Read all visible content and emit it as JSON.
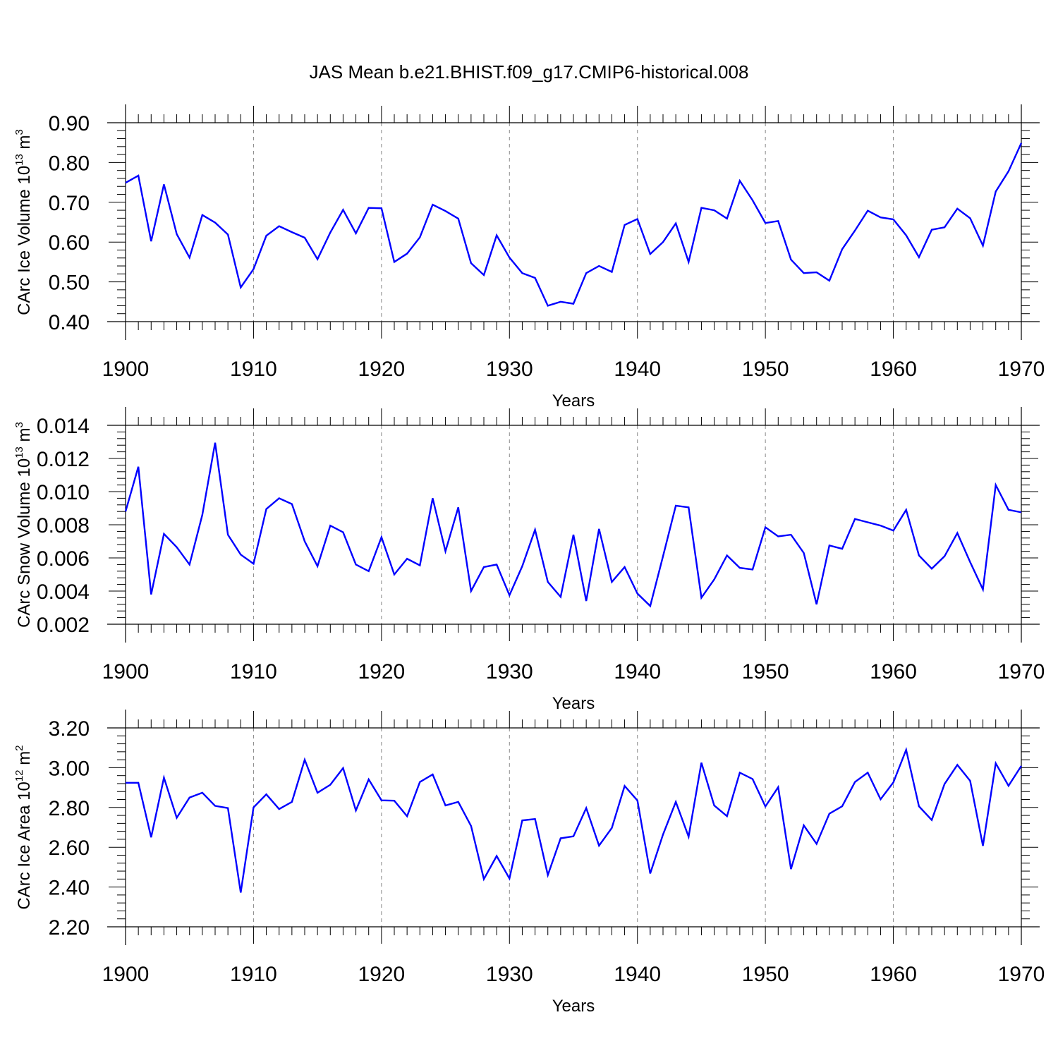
{
  "title": "JAS Mean b.e21.BHIST.f09_g17.CMIP6-historical.008",
  "chart_data": [
    {
      "type": "line",
      "ylabel": "CArc Ice Volume 10",
      "ylabel_exp": "13",
      "ylabel_unit": "m",
      "ylabel_unit_exp": "3",
      "xlabel": "Years",
      "xlim": [
        1900,
        1970
      ],
      "ylim": [
        0.4,
        0.9
      ],
      "xticks": [
        "1900",
        "1910",
        "1920",
        "1930",
        "1940",
        "1950",
        "1960",
        "1970"
      ],
      "yticks": [
        "0.40",
        "0.50",
        "0.60",
        "0.70",
        "0.80",
        "0.90"
      ],
      "ytick_values": [
        0.4,
        0.5,
        0.6,
        0.7,
        0.8,
        0.9
      ],
      "ytick_minor": 0.02,
      "grid": "x-dashed",
      "series": [
        {
          "name": "CArc Ice Volume",
          "color": "#0000ff",
          "x_start": 1900,
          "values": [
            0.749,
            0.767,
            0.602,
            0.745,
            0.62,
            0.561,
            0.668,
            0.649,
            0.619,
            0.486,
            0.532,
            0.616,
            0.64,
            0.625,
            0.611,
            0.557,
            0.624,
            0.681,
            0.622,
            0.686,
            0.685,
            0.55,
            0.571,
            0.612,
            0.694,
            0.678,
            0.659,
            0.547,
            0.517,
            0.617,
            0.561,
            0.522,
            0.51,
            0.44,
            0.45,
            0.445,
            0.522,
            0.54,
            0.525,
            0.643,
            0.658,
            0.57,
            0.6,
            0.647,
            0.55,
            0.686,
            0.68,
            0.659,
            0.754,
            0.705,
            0.648,
            0.653,
            0.556,
            0.522,
            0.524,
            0.503,
            0.582,
            0.629,
            0.679,
            0.662,
            0.657,
            0.617,
            0.562,
            0.631,
            0.637,
            0.684,
            0.66,
            0.591,
            0.727,
            0.778,
            0.849
          ]
        }
      ]
    },
    {
      "type": "line",
      "ylabel": "CArc Snow Volume 10",
      "ylabel_exp": "13",
      "ylabel_unit": "m",
      "ylabel_unit_exp": "3",
      "xlabel": "Years",
      "xlim": [
        1900,
        1970
      ],
      "ylim": [
        0.002,
        0.014
      ],
      "xticks": [
        "1900",
        "1910",
        "1920",
        "1930",
        "1940",
        "1950",
        "1960",
        "1970"
      ],
      "yticks": [
        "0.002",
        "0.004",
        "0.006",
        "0.008",
        "0.010",
        "0.012",
        "0.014"
      ],
      "ytick_values": [
        0.002,
        0.004,
        0.006,
        0.008,
        0.01,
        0.012,
        0.014
      ],
      "ytick_minor": 0.0004,
      "grid": "x-dashed",
      "series": [
        {
          "name": "CArc Snow Volume",
          "color": "#0000ff",
          "x_start": 1900,
          "values": [
            0.0088,
            0.0115,
            0.0038,
            0.00745,
            0.00665,
            0.0056,
            0.0086,
            0.01295,
            0.0074,
            0.0062,
            0.00565,
            0.00895,
            0.0096,
            0.00925,
            0.007,
            0.0055,
            0.00795,
            0.00755,
            0.0056,
            0.0052,
            0.00725,
            0.005,
            0.00595,
            0.00555,
            0.0096,
            0.0064,
            0.00905,
            0.004,
            0.00545,
            0.0056,
            0.00375,
            0.0055,
            0.0077,
            0.00455,
            0.00365,
            0.0074,
            0.0034,
            0.00775,
            0.00455,
            0.00545,
            0.00385,
            0.0031,
            0.0061,
            0.00915,
            0.00905,
            0.0036,
            0.0047,
            0.00615,
            0.0054,
            0.0053,
            0.00785,
            0.0073,
            0.0074,
            0.0063,
            0.0032,
            0.00675,
            0.00655,
            0.00835,
            0.00815,
            0.00795,
            0.00765,
            0.0089,
            0.00615,
            0.00535,
            0.0061,
            0.0075,
            0.00575,
            0.0041,
            0.0104,
            0.0089,
            0.00875
          ]
        }
      ]
    },
    {
      "type": "line",
      "ylabel": "CArc Ice Area 10",
      "ylabel_exp": "12",
      "ylabel_unit": "m",
      "ylabel_unit_exp": "2",
      "xlabel": "Years",
      "xlim": [
        1900,
        1970
      ],
      "ylim": [
        2.2,
        3.2
      ],
      "xticks": [
        "1900",
        "1910",
        "1920",
        "1930",
        "1940",
        "1950",
        "1960",
        "1970"
      ],
      "yticks": [
        "2.20",
        "2.40",
        "2.60",
        "2.80",
        "3.00",
        "3.20"
      ],
      "ytick_values": [
        2.2,
        2.4,
        2.6,
        2.8,
        3.0,
        3.2
      ],
      "ytick_minor": 0.04,
      "grid": "x-dashed",
      "series": [
        {
          "name": "CArc Ice Area",
          "color": "#0000ff",
          "x_start": 1900,
          "values": [
            2.924,
            2.924,
            2.65,
            2.95,
            2.748,
            2.85,
            2.874,
            2.808,
            2.797,
            2.372,
            2.8,
            2.866,
            2.792,
            2.828,
            3.04,
            2.874,
            2.914,
            2.998,
            2.785,
            2.941,
            2.836,
            2.834,
            2.756,
            2.928,
            2.966,
            2.81,
            2.828,
            2.707,
            2.44,
            2.556,
            2.443,
            2.735,
            2.742,
            2.46,
            2.645,
            2.655,
            2.797,
            2.608,
            2.697,
            2.908,
            2.835,
            2.468,
            2.664,
            2.828,
            2.653,
            3.025,
            2.81,
            2.756,
            2.975,
            2.943,
            2.805,
            2.902,
            2.49,
            2.71,
            2.617,
            2.769,
            2.806,
            2.928,
            2.975,
            2.841,
            2.926,
            3.09,
            2.806,
            2.737,
            2.918,
            3.014,
            2.934,
            2.607,
            3.022,
            2.909,
            3.009
          ]
        }
      ]
    }
  ]
}
